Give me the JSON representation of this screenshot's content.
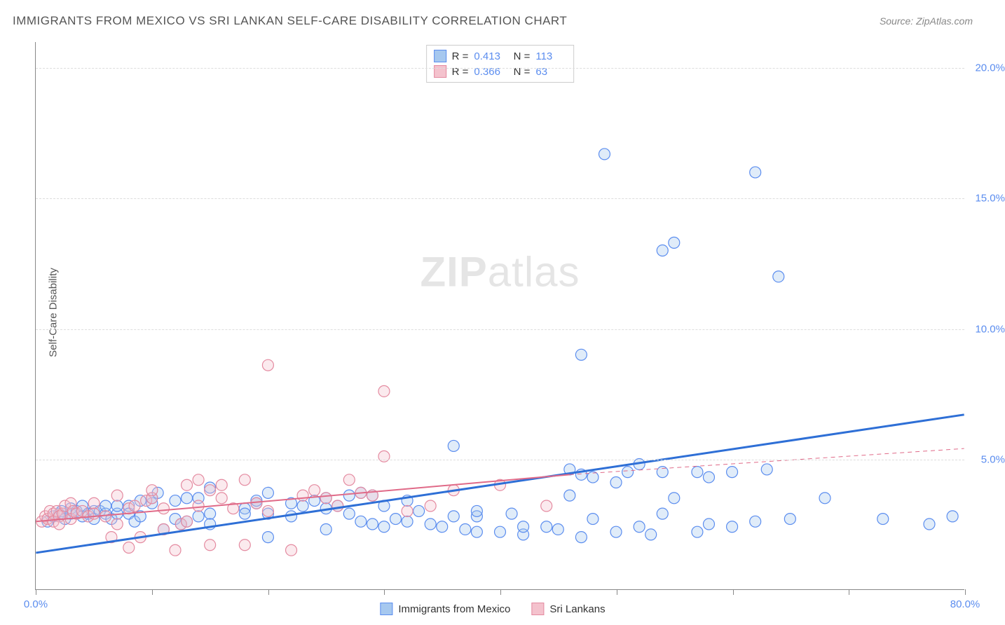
{
  "title": "IMMIGRANTS FROM MEXICO VS SRI LANKAN SELF-CARE DISABILITY CORRELATION CHART",
  "source": "Source: ZipAtlas.com",
  "ylabel": "Self-Care Disability",
  "chart": {
    "type": "scatter",
    "xlim": [
      0,
      80
    ],
    "ylim": [
      0,
      21
    ],
    "xtick_positions": [
      0,
      10,
      20,
      30,
      40,
      50,
      60,
      70,
      80
    ],
    "x_labels": {
      "0": "0.0%",
      "80": "80.0%"
    },
    "ytick_positions": [
      5,
      10,
      15,
      20
    ],
    "y_labels": {
      "5": "5.0%",
      "10": "10.0%",
      "15": "15.0%",
      "20": "20.0%"
    },
    "background_color": "#ffffff",
    "grid_color": "#dddddd",
    "axis_color": "#888888",
    "marker_radius": 8,
    "marker_stroke_width": 1.2,
    "marker_fill_opacity": 0.35,
    "series": [
      {
        "name": "Immigrants from Mexico",
        "color_fill": "#a6c8ef",
        "color_stroke": "#5b8def",
        "r": "0.413",
        "n": "113",
        "trend": {
          "x1": 0,
          "y1": 1.4,
          "x2": 80,
          "y2": 6.7,
          "width": 3,
          "color": "#2e6fd6",
          "dash": "none"
        },
        "trend_extra": null,
        "points": [
          [
            1,
            2.6
          ],
          [
            1.5,
            2.8
          ],
          [
            2,
            2.9
          ],
          [
            2.2,
            3.0
          ],
          [
            2.5,
            2.7
          ],
          [
            3,
            2.9
          ],
          [
            3,
            3.1
          ],
          [
            3.5,
            3.0
          ],
          [
            4,
            2.8
          ],
          [
            4,
            3.2
          ],
          [
            4.5,
            2.9
          ],
          [
            5,
            3.0
          ],
          [
            5,
            2.7
          ],
          [
            5.5,
            3.0
          ],
          [
            6,
            2.9
          ],
          [
            6,
            3.2
          ],
          [
            6.5,
            2.7
          ],
          [
            7,
            2.9
          ],
          [
            7,
            3.2
          ],
          [
            8,
            3.2
          ],
          [
            8,
            2.9
          ],
          [
            8.5,
            2.6
          ],
          [
            9,
            2.8
          ],
          [
            9,
            3.4
          ],
          [
            10,
            3.3
          ],
          [
            10,
            3.5
          ],
          [
            10.5,
            3.7
          ],
          [
            11,
            2.3
          ],
          [
            12,
            3.4
          ],
          [
            12,
            2.7
          ],
          [
            12.5,
            2.5
          ],
          [
            13,
            3.5
          ],
          [
            13,
            2.6
          ],
          [
            14,
            3.5
          ],
          [
            14,
            2.8
          ],
          [
            15,
            3.9
          ],
          [
            15,
            2.9
          ],
          [
            15,
            2.5
          ],
          [
            18,
            3.1
          ],
          [
            18,
            2.9
          ],
          [
            19,
            3.3
          ],
          [
            19,
            3.4
          ],
          [
            20,
            2.9
          ],
          [
            20,
            2.0
          ],
          [
            20,
            3.7
          ],
          [
            22,
            3.3
          ],
          [
            22,
            2.8
          ],
          [
            23,
            3.2
          ],
          [
            24,
            3.4
          ],
          [
            25,
            3.5
          ],
          [
            25,
            3.1
          ],
          [
            25,
            2.3
          ],
          [
            26,
            3.2
          ],
          [
            27,
            2.9
          ],
          [
            27,
            3.6
          ],
          [
            28,
            2.6
          ],
          [
            28,
            3.7
          ],
          [
            29,
            3.6
          ],
          [
            29,
            2.5
          ],
          [
            30,
            2.4
          ],
          [
            30,
            3.2
          ],
          [
            31,
            2.7
          ],
          [
            32,
            3.4
          ],
          [
            32,
            2.6
          ],
          [
            33,
            3.0
          ],
          [
            34,
            2.5
          ],
          [
            35,
            2.4
          ],
          [
            36,
            2.8
          ],
          [
            36,
            5.5
          ],
          [
            37,
            2.3
          ],
          [
            38,
            2.2
          ],
          [
            38,
            2.8
          ],
          [
            38,
            3.0
          ],
          [
            40,
            2.2
          ],
          [
            41,
            2.9
          ],
          [
            42,
            2.1
          ],
          [
            42,
            2.4
          ],
          [
            44,
            2.4
          ],
          [
            45,
            2.3
          ],
          [
            46,
            3.6
          ],
          [
            46,
            4.6
          ],
          [
            47,
            2.0
          ],
          [
            47,
            4.4
          ],
          [
            47,
            9.0
          ],
          [
            48,
            2.7
          ],
          [
            48,
            4.3
          ],
          [
            49,
            16.7
          ],
          [
            50,
            2.2
          ],
          [
            50,
            4.1
          ],
          [
            51,
            4.5
          ],
          [
            52,
            2.4
          ],
          [
            52,
            4.8
          ],
          [
            53,
            2.1
          ],
          [
            54,
            2.9
          ],
          [
            54,
            4.5
          ],
          [
            54,
            13.0
          ],
          [
            55,
            3.5
          ],
          [
            55,
            13.3
          ],
          [
            57,
            2.2
          ],
          [
            57,
            4.5
          ],
          [
            58,
            2.5
          ],
          [
            58,
            4.3
          ],
          [
            60,
            2.4
          ],
          [
            60,
            4.5
          ],
          [
            62,
            2.6
          ],
          [
            62,
            16.0
          ],
          [
            63,
            4.6
          ],
          [
            64,
            12.0
          ],
          [
            65,
            2.7
          ],
          [
            68,
            3.5
          ],
          [
            73,
            2.7
          ],
          [
            77,
            2.5
          ],
          [
            79,
            2.8
          ]
        ]
      },
      {
        "name": "Sri Lankans",
        "color_fill": "#f4c2cd",
        "color_stroke": "#e48aa0",
        "r": "0.366",
        "n": "63",
        "trend": {
          "x1": 0,
          "y1": 2.6,
          "x2": 46,
          "y2": 4.4,
          "width": 2,
          "color": "#e06a88",
          "dash": "none"
        },
        "trend_extra": {
          "x1": 46,
          "y1": 4.4,
          "x2": 80,
          "y2": 5.4,
          "width": 1,
          "color": "#e06a88",
          "dash": "6,5"
        },
        "points": [
          [
            0.5,
            2.6
          ],
          [
            0.8,
            2.8
          ],
          [
            1,
            2.7
          ],
          [
            1.2,
            3.0
          ],
          [
            1.5,
            2.9
          ],
          [
            1.5,
            2.6
          ],
          [
            1.8,
            3.0
          ],
          [
            2,
            2.8
          ],
          [
            2,
            2.5
          ],
          [
            2.3,
            2.9
          ],
          [
            2.5,
            3.2
          ],
          [
            3,
            3.3
          ],
          [
            3,
            2.7
          ],
          [
            3.2,
            3.0
          ],
          [
            3.5,
            2.9
          ],
          [
            4,
            3.0
          ],
          [
            4.5,
            2.8
          ],
          [
            5,
            3.3
          ],
          [
            5,
            2.9
          ],
          [
            6,
            2.8
          ],
          [
            6.5,
            2.0
          ],
          [
            7,
            3.6
          ],
          [
            7,
            2.5
          ],
          [
            8,
            3.1
          ],
          [
            8,
            1.6
          ],
          [
            8.5,
            3.2
          ],
          [
            9,
            2.0
          ],
          [
            9.5,
            3.4
          ],
          [
            10,
            3.5
          ],
          [
            10,
            3.8
          ],
          [
            11,
            2.3
          ],
          [
            11,
            3.1
          ],
          [
            12,
            1.5
          ],
          [
            12.5,
            2.5
          ],
          [
            13,
            2.6
          ],
          [
            13,
            4.0
          ],
          [
            14,
            3.2
          ],
          [
            14,
            4.2
          ],
          [
            15,
            3.8
          ],
          [
            15,
            1.7
          ],
          [
            16,
            3.5
          ],
          [
            16,
            4.0
          ],
          [
            17,
            3.1
          ],
          [
            18,
            4.2
          ],
          [
            18,
            1.7
          ],
          [
            19,
            3.3
          ],
          [
            20,
            3.0
          ],
          [
            20,
            8.6
          ],
          [
            22,
            1.5
          ],
          [
            23,
            3.6
          ],
          [
            24,
            3.8
          ],
          [
            25,
            3.5
          ],
          [
            26,
            3.2
          ],
          [
            27,
            4.2
          ],
          [
            28,
            3.7
          ],
          [
            29,
            3.6
          ],
          [
            30,
            5.1
          ],
          [
            30,
            7.6
          ],
          [
            32,
            3.0
          ],
          [
            34,
            3.2
          ],
          [
            36,
            3.8
          ],
          [
            40,
            4.0
          ],
          [
            44,
            3.2
          ]
        ]
      }
    ]
  },
  "top_legend": {
    "r_label": "R",
    "n_label": "N",
    "eq": "="
  },
  "watermark": {
    "bold": "ZIP",
    "rest": "atlas"
  },
  "bottom_legend": [
    {
      "label": "Immigrants from Mexico",
      "fill": "#a6c8ef",
      "stroke": "#5b8def"
    },
    {
      "label": "Sri Lankans",
      "fill": "#f4c2cd",
      "stroke": "#e48aa0"
    }
  ]
}
